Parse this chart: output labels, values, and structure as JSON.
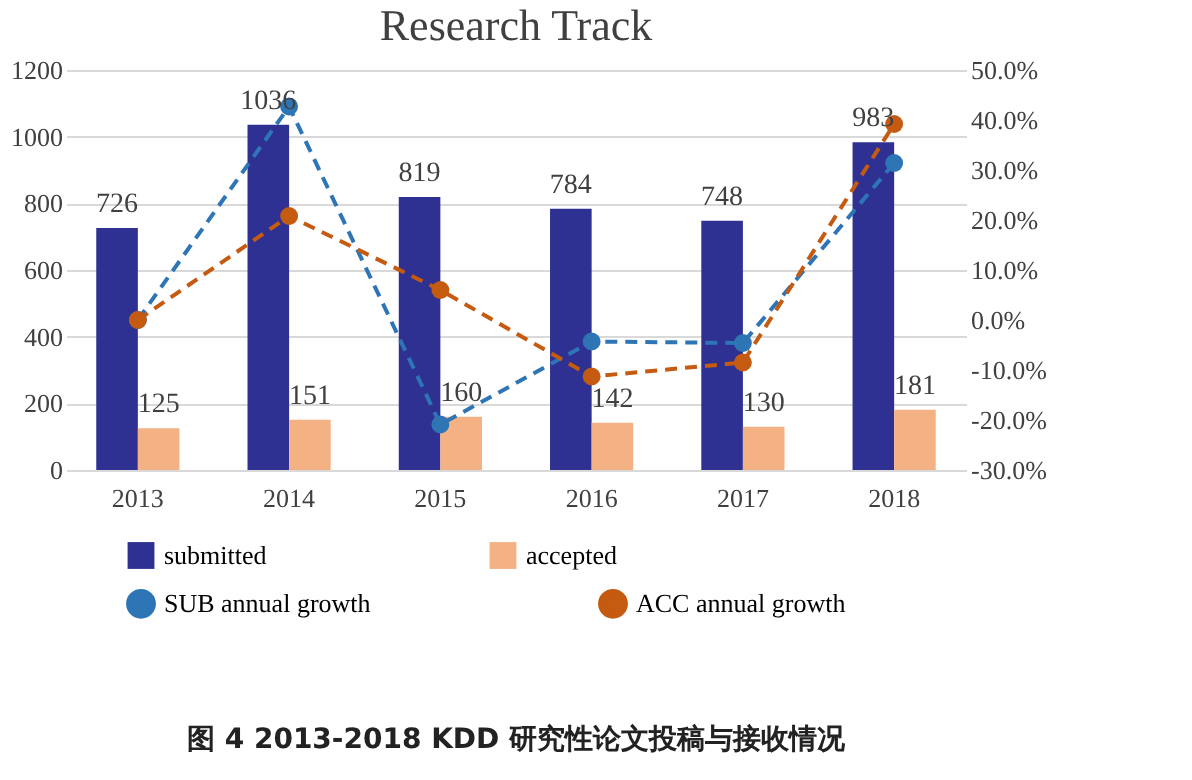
{
  "chart_data": {
    "type": "bar",
    "title": "Research Track",
    "categories": [
      "2013",
      "2014",
      "2015",
      "2016",
      "2017",
      "2018"
    ],
    "series": [
      {
        "name": "submitted",
        "color": "#2e3192",
        "values": [
          726,
          1036,
          819,
          784,
          748,
          983
        ],
        "value_labels": [
          "726",
          "1036",
          "819",
          "784",
          "748",
          "983"
        ]
      },
      {
        "name": "accepted",
        "color": "#f4b183",
        "values": [
          125,
          151,
          160,
          142,
          130,
          181
        ],
        "value_labels": [
          "125",
          "151",
          "160",
          "142",
          "130",
          "181"
        ]
      },
      {
        "name": "SUB annual growth",
        "type": "line",
        "axis": "y2",
        "color": "#2e75b6",
        "values": [
          0,
          42.7,
          -20.9,
          -4.3,
          -4.6,
          31.4
        ]
      },
      {
        "name": "ACC annual growth",
        "type": "line",
        "axis": "y2",
        "color": "#c55a11",
        "values": [
          0,
          20.8,
          6.0,
          -11.3,
          -8.5,
          39.2
        ]
      }
    ],
    "ylim": [
      0,
      1200
    ],
    "yticks": [
      0,
      200,
      400,
      600,
      800,
      1000,
      1200
    ],
    "y2lim": [
      -30,
      50
    ],
    "y2ticks": [
      {
        "value": -30,
        "label": "-30.0%"
      },
      {
        "value": -20,
        "label": "-20.0%"
      },
      {
        "value": -10,
        "label": "-10.0%"
      },
      {
        "value": 0,
        "label": "0.0%"
      },
      {
        "value": 10,
        "label": "10.0%"
      },
      {
        "value": 20,
        "label": "20.0%"
      },
      {
        "value": 30,
        "label": "30.0%"
      },
      {
        "value": 40,
        "label": "40.0%"
      },
      {
        "value": 50,
        "label": "50.0%"
      }
    ],
    "grid": "y",
    "legend": "bottom",
    "marker": "circle",
    "line_style": "dashed",
    "annotations": [
      "图 4 2013-2018 KDD 研究性论文投稿与接收情况"
    ]
  }
}
